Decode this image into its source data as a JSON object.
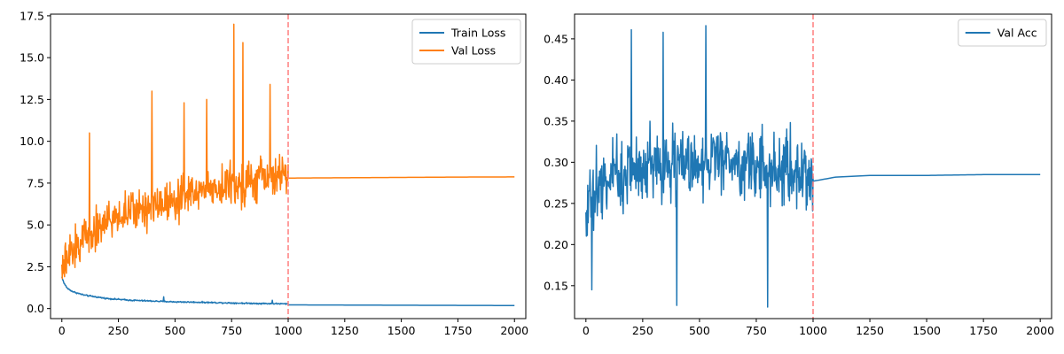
{
  "chart_data": [
    {
      "type": "line",
      "title": "",
      "xlabel": "",
      "ylabel": "",
      "xlim": [
        -50,
        2050
      ],
      "ylim": [
        -0.6,
        17.6
      ],
      "xticks": [
        0,
        250,
        500,
        750,
        1000,
        1250,
        1500,
        1750,
        2000
      ],
      "yticks": [
        0.0,
        2.5,
        5.0,
        7.5,
        10.0,
        12.5,
        15.0,
        17.5
      ],
      "xtick_labels": [
        "0",
        "250",
        "500",
        "750",
        "1000",
        "1250",
        "1500",
        "1750",
        "2000"
      ],
      "ytick_labels": [
        "0.0",
        "2.5",
        "5.0",
        "7.5",
        "10.0",
        "12.5",
        "15.0",
        "17.5"
      ],
      "grid": false,
      "legend_position": "top-right",
      "vline": {
        "x": 1000,
        "color": "#ff7f7f",
        "style": "dashed"
      },
      "series": [
        {
          "name": "Train Loss",
          "color": "#1f77b4",
          "noisy_segment": {
            "x_range": [
              0,
              1000
            ],
            "x": [
              0,
              10,
              25,
              50,
              75,
              100,
              150,
              200,
              300,
              400,
              500,
              600,
              700,
              800,
              900,
              1000
            ],
            "values": [
              1.9,
              1.5,
              1.2,
              1.0,
              0.9,
              0.8,
              0.7,
              0.6,
              0.5,
              0.45,
              0.4,
              0.38,
              0.35,
              0.32,
              0.3,
              0.28
            ],
            "noise_amplitude": 0.06,
            "spikes": [
              {
                "x": 450,
                "value": 0.7
              },
              {
                "x": 930,
                "value": 0.5
              }
            ]
          },
          "smooth_segment": {
            "x": [
              1000,
              1250,
              1500,
              1750,
              2000
            ],
            "values": [
              0.22,
              0.21,
              0.2,
              0.19,
              0.18
            ]
          }
        },
        {
          "name": "Val Loss",
          "color": "#ff7f0e",
          "noisy_segment": {
            "x_range": [
              0,
              1000
            ],
            "x": [
              0,
              50,
              100,
              200,
              300,
              400,
              500,
              600,
              700,
              800,
              900,
              1000
            ],
            "values": [
              2.2,
              3.5,
              4.3,
              5.2,
              5.8,
              6.2,
              6.6,
              7.0,
              7.3,
              7.5,
              7.8,
              8.0
            ],
            "noise_amplitude": 1.8,
            "spikes": [
              {
                "x": 122,
                "value": 10.5
              },
              {
                "x": 398,
                "value": 13.0
              },
              {
                "x": 540,
                "value": 12.3
              },
              {
                "x": 640,
                "value": 12.5
              },
              {
                "x": 759,
                "value": 17.0
              },
              {
                "x": 799,
                "value": 15.9
              },
              {
                "x": 920,
                "value": 13.4
              }
            ]
          },
          "smooth_segment": {
            "x": [
              1000,
              1250,
              1500,
              1750,
              2000
            ],
            "values": [
              7.8,
              7.82,
              7.84,
              7.86,
              7.87
            ]
          }
        }
      ]
    },
    {
      "type": "line",
      "title": "",
      "xlabel": "",
      "ylabel": "",
      "xlim": [
        -50,
        2050
      ],
      "ylim": [
        0.11,
        0.48
      ],
      "xticks": [
        0,
        250,
        500,
        750,
        1000,
        1250,
        1500,
        1750,
        2000
      ],
      "yticks": [
        0.15,
        0.2,
        0.25,
        0.3,
        0.35,
        0.4,
        0.45
      ],
      "xtick_labels": [
        "0",
        "250",
        "500",
        "750",
        "1000",
        "1250",
        "1500",
        "1750",
        "2000"
      ],
      "ytick_labels": [
        "0.15",
        "0.20",
        "0.25",
        "0.30",
        "0.35",
        "0.40",
        "0.45"
      ],
      "grid": false,
      "legend_position": "top-right",
      "vline": {
        "x": 1000,
        "color": "#ff7f7f",
        "style": "dashed"
      },
      "series": [
        {
          "name": "Val Acc",
          "color": "#1f77b4",
          "noisy_segment": {
            "x_range": [
              0,
              1000
            ],
            "x": [
              0,
              100,
              200,
              300,
              400,
              500,
              600,
              700,
              800,
              900,
              1000
            ],
            "values": [
              0.25,
              0.28,
              0.29,
              0.3,
              0.3,
              0.3,
              0.3,
              0.3,
              0.29,
              0.29,
              0.28
            ],
            "noise_amplitude": 0.065,
            "spikes": [
              {
                "x": 200,
                "value": 0.461
              },
              {
                "x": 340,
                "value": 0.458
              },
              {
                "x": 527,
                "value": 0.466
              },
              {
                "x": 400,
                "value": 0.126
              },
              {
                "x": 800,
                "value": 0.124
              },
              {
                "x": 25,
                "value": 0.145
              }
            ]
          },
          "smooth_segment": {
            "x": [
              1000,
              1100,
              1250,
              1500,
              1750,
              2000
            ],
            "values": [
              0.277,
              0.282,
              0.284,
              0.284,
              0.285,
              0.285
            ]
          }
        }
      ]
    }
  ]
}
